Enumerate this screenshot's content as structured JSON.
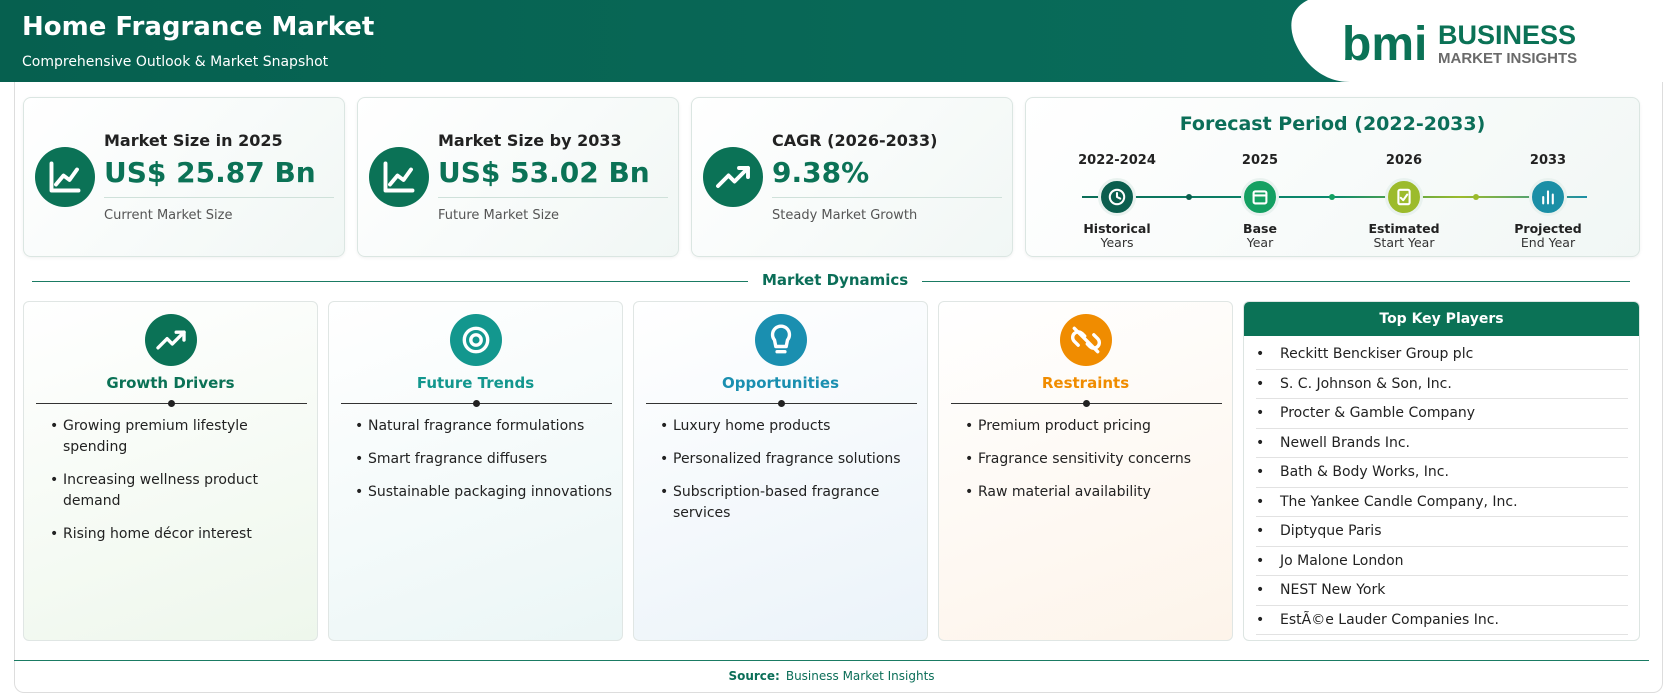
{
  "header": {
    "title": "Home Fragrance Market",
    "subtitle": "Comprehensive Outlook & Market Snapshot"
  },
  "logo": {
    "mark": "bmi",
    "name": "BUSINESS",
    "tagline": "MARKET INSIGHTS"
  },
  "stats": [
    {
      "label": "Market Size in 2025",
      "value": "US$ 25.87 Bn",
      "caption": "Current Market Size"
    },
    {
      "label": "Market Size by 2033",
      "value": "US$ 53.02 Bn",
      "caption": "Future Market Size"
    },
    {
      "label": "CAGR (2026-2033)",
      "value": "9.38%",
      "caption": "Steady Market Growth"
    }
  ],
  "forecast": {
    "title": "Forecast Period (2022-2033)",
    "steps": [
      {
        "period": "2022-2024",
        "label": "Historical",
        "sublabel": "Years"
      },
      {
        "period": "2025",
        "label": "Base",
        "sublabel": "Year"
      },
      {
        "period": "2026",
        "label": "Estimated",
        "sublabel": "Start Year"
      },
      {
        "period": "2033",
        "label": "Projected",
        "sublabel": "End Year"
      }
    ]
  },
  "dynamics": {
    "title": "Market Dynamics",
    "columns": [
      {
        "title": "Growth Drivers",
        "items": [
          "Growing premium lifestyle spending",
          "Increasing wellness product demand",
          "Rising home décor interest"
        ]
      },
      {
        "title": "Future Trends",
        "items": [
          "Natural fragrance formulations",
          "Smart fragrance diffusers",
          "Sustainable packaging innovations"
        ]
      },
      {
        "title": "Opportunities",
        "items": [
          "Luxury home products",
          "Personalized fragrance solutions",
          "Subscription-based fragrance services"
        ]
      },
      {
        "title": "Restraints",
        "items": [
          "Premium product pricing",
          "Fragrance sensitivity concerns",
          "Raw material availability"
        ]
      }
    ]
  },
  "key_players": {
    "title": "Top Key Players",
    "items": [
      "Reckitt Benckiser Group plc",
      "S. C. Johnson & Son, Inc.",
      "Procter & Gamble Company",
      "Newell Brands Inc.",
      "Bath & Body Works, Inc.",
      "The Yankee Candle Company, Inc.",
      "Diptyque Paris",
      "Jo Malone London",
      "NEST New York",
      "EstÃ©e Lauder Companies Inc."
    ]
  },
  "footer": {
    "source_label": "Source:",
    "source": "Business Market Insights"
  }
}
